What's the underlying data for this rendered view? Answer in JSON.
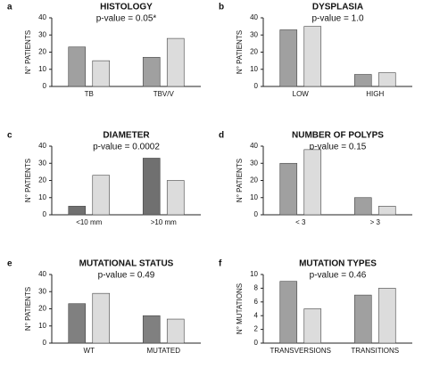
{
  "chart_data": [
    {
      "type": "bar",
      "panel_label": "a",
      "title": "HISTOLOGY",
      "subtitle": "p-value = 0.05*",
      "y_label": "N° PATIENTS",
      "categories": [
        "TB",
        "TBV/V"
      ],
      "series": [
        {
          "color": "#a0a0a0",
          "values": [
            23,
            17
          ]
        },
        {
          "color": "#dcdcdc",
          "values": [
            15,
            28
          ]
        }
      ],
      "ylim": [
        0,
        40
      ],
      "yticks": [
        0,
        10,
        20,
        30,
        40
      ]
    },
    {
      "type": "bar",
      "panel_label": "b",
      "title": "DYSPLASIA",
      "subtitle": "p-value = 1.0",
      "y_label": "N° PATIENTS",
      "categories": [
        "LOW",
        "HIGH"
      ],
      "series": [
        {
          "color": "#a0a0a0",
          "values": [
            33,
            7
          ]
        },
        {
          "color": "#dcdcdc",
          "values": [
            35,
            8
          ]
        }
      ],
      "ylim": [
        0,
        40
      ],
      "yticks": [
        0,
        10,
        20,
        30,
        40
      ]
    },
    {
      "type": "bar",
      "panel_label": "c",
      "title": "DIAMETER",
      "subtitle": "p-value = 0.0002",
      "y_label": "N° PATIENTS",
      "categories": [
        "<10 mm",
        ">10 mm"
      ],
      "series": [
        {
          "color": "#707070",
          "values": [
            5,
            33
          ]
        },
        {
          "color": "#dcdcdc",
          "values": [
            23,
            20
          ]
        }
      ],
      "ylim": [
        0,
        40
      ],
      "yticks": [
        0,
        10,
        20,
        30,
        40
      ]
    },
    {
      "type": "bar",
      "panel_label": "d",
      "title": "NUMBER OF POLYPS",
      "subtitle": "p-value = 0.15",
      "y_label": "N° PATIENTS",
      "categories": [
        "< 3",
        "> 3"
      ],
      "series": [
        {
          "color": "#a0a0a0",
          "values": [
            30,
            10
          ]
        },
        {
          "color": "#dcdcdc",
          "values": [
            38,
            5
          ]
        }
      ],
      "ylim": [
        0,
        40
      ],
      "yticks": [
        0,
        10,
        20,
        30,
        40
      ]
    },
    {
      "type": "bar",
      "panel_label": "e",
      "title": "MUTATIONAL STATUS",
      "subtitle": "p-value = 0.49",
      "y_label": "N° PATIENTS",
      "categories": [
        "WT",
        "MUTATED"
      ],
      "series": [
        {
          "color": "#808080",
          "values": [
            23,
            16
          ]
        },
        {
          "color": "#dcdcdc",
          "values": [
            29,
            14
          ]
        }
      ],
      "ylim": [
        0,
        40
      ],
      "yticks": [
        0,
        10,
        20,
        30,
        40
      ]
    },
    {
      "type": "bar",
      "panel_label": "f",
      "title": "MUTATION TYPES",
      "subtitle": "p-value = 0.46",
      "y_label": "N° MUTATIONS",
      "categories": [
        "TRANSVERSIONS",
        "TRANSITIONS"
      ],
      "series": [
        {
          "color": "#a0a0a0",
          "values": [
            9,
            7
          ]
        },
        {
          "color": "#dcdcdc",
          "values": [
            5,
            8
          ]
        }
      ],
      "ylim": [
        0,
        10
      ],
      "yticks": [
        0,
        2,
        4,
        6,
        8,
        10
      ]
    }
  ]
}
